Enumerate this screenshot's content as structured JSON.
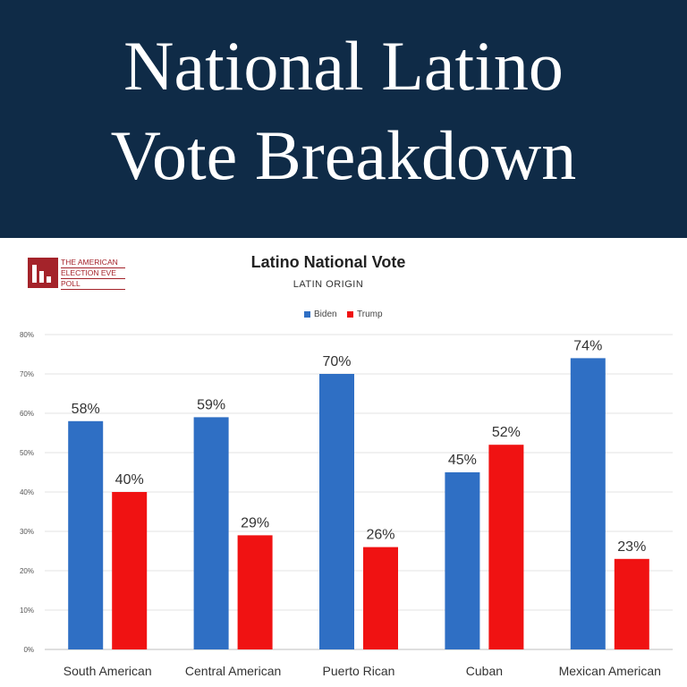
{
  "banner": {
    "title_line1": "National Latino",
    "title_line2": "Vote Breakdown",
    "background": "#0f2b47"
  },
  "logo": {
    "text_lines": [
      "THE AMERICAN",
      "ELECTION EVE",
      "POLL"
    ],
    "color": "#a4232a",
    "icon": "bar-chart-logo-icon"
  },
  "chart_data": {
    "type": "bar",
    "title": "Latino National Vote",
    "subtitle": "LATIN ORIGIN",
    "categories": [
      "South American",
      "Central American",
      "Puerto Rican",
      "Cuban",
      "Mexican American"
    ],
    "series": [
      {
        "name": "Biden",
        "color": "#2f6fc4",
        "values": [
          58,
          59,
          70,
          45,
          74
        ],
        "labels": [
          "58%",
          "59%",
          "70%",
          "45%",
          "74%"
        ]
      },
      {
        "name": "Trump",
        "color": "#f01212",
        "values": [
          40,
          29,
          26,
          52,
          23
        ],
        "labels": [
          "40%",
          "29%",
          "26%",
          "52%",
          "23%"
        ]
      }
    ],
    "ylim": [
      0,
      80
    ],
    "yticks": [
      0,
      10,
      20,
      30,
      40,
      50,
      60,
      70,
      80
    ],
    "ytick_labels": [
      "0%",
      "10%",
      "20%",
      "30%",
      "40%",
      "50%",
      "60%",
      "70%",
      "80%"
    ],
    "grid": true,
    "legend": "top-center"
  }
}
